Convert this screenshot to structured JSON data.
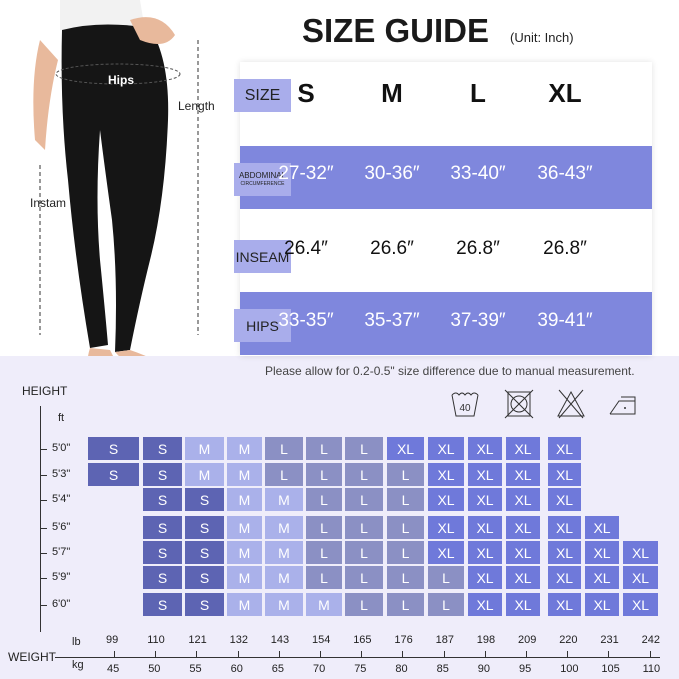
{
  "header": {
    "title": "SIZE GUIDE",
    "unit": "(Unit: Inch)"
  },
  "model": {
    "labels": {
      "hips": "Hips",
      "length": "Length",
      "inseam": "Instam"
    }
  },
  "size_table": {
    "sizes": [
      "S",
      "M",
      "L",
      "XL"
    ],
    "rows": [
      {
        "label": "SIZE"
      },
      {
        "label": "ABDOMINAL",
        "sublabel": "CIRCUMFERENCE",
        "values": [
          "27-32″",
          "30-36″",
          "33-40″",
          "36-43″"
        ]
      },
      {
        "label": "INSEAM",
        "values": [
          "26.4″",
          "26.6″",
          "26.8″",
          "26.8″"
        ]
      },
      {
        "label": "HIPS",
        "values": [
          "33-35″",
          "35-37″",
          "37-39″",
          "39-41″"
        ]
      }
    ]
  },
  "note": "Please allow for 0.2-0.5\" size difference due to manual measurement.",
  "care_icons": [
    "wash-40-icon",
    "no-tumble-dry-icon",
    "no-bleach-icon",
    "iron-low-icon"
  ],
  "care_wash_temp": "40",
  "chart": {
    "height_label": "HEIGHT",
    "height_unit": "ft",
    "weight_label": "WEIGHT",
    "lb_unit": "lb",
    "kg_unit": "kg",
    "weights_lb": [
      "99",
      "110",
      "121",
      "132",
      "143",
      "154",
      "165",
      "176",
      "187",
      "198",
      "209",
      "220",
      "231",
      "242"
    ],
    "weights_kg": [
      "45",
      "50",
      "55",
      "60",
      "65",
      "70",
      "75",
      "80",
      "85",
      "90",
      "95",
      "100",
      "105",
      "110"
    ],
    "colors": {
      "S": "#5d64b3",
      "M": "#aab1ea",
      "L": "#8b90c4",
      "XL": "#6f79da"
    },
    "rows": [
      {
        "height": "5'0\"",
        "cells": [
          "S",
          "S",
          "M",
          "M",
          "L",
          "L",
          "L",
          "XL",
          "XL",
          "XL",
          "XL",
          "XL",
          null,
          null
        ]
      },
      {
        "height": "5'3\"",
        "cells": [
          "S",
          "S",
          "M",
          "M",
          "L",
          "L",
          "L",
          "L",
          "XL",
          "XL",
          "XL",
          "XL",
          null,
          null
        ]
      },
      {
        "height": "5'4\"",
        "cells": [
          null,
          "S",
          "S",
          "M",
          "M",
          "L",
          "L",
          "L",
          "XL",
          "XL",
          "XL",
          "XL",
          null,
          null
        ]
      },
      {
        "height": "5'6\"",
        "cells": [
          null,
          "S",
          "S",
          "M",
          "M",
          "L",
          "L",
          "L",
          "XL",
          "XL",
          "XL",
          "XL",
          "XL",
          null
        ]
      },
      {
        "height": "5'7\"",
        "cells": [
          null,
          "S",
          "S",
          "M",
          "M",
          "L",
          "L",
          "L",
          "XL",
          "XL",
          "XL",
          "XL",
          "XL",
          "XL"
        ]
      },
      {
        "height": "5'9\"",
        "cells": [
          null,
          "S",
          "S",
          "M",
          "M",
          "L",
          "L",
          "L",
          "L",
          "XL",
          "XL",
          "XL",
          "XL",
          "XL"
        ]
      },
      {
        "height": "6'0\"",
        "cells": [
          null,
          "S",
          "S",
          "M",
          "M",
          "M",
          "L",
          "L",
          "L",
          "XL",
          "XL",
          "XL",
          "XL",
          "XL"
        ]
      }
    ]
  }
}
